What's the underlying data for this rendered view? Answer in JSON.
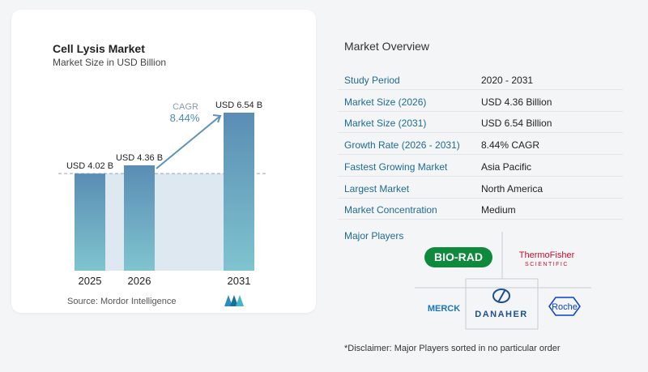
{
  "chart": {
    "title": "Cell Lysis Market",
    "subtitle": "Market Size in USD Billion",
    "source": "Source:  Mordor Intelligence",
    "cagr_label": "CAGR",
    "cagr_value": "8.44%"
  },
  "chart_data": {
    "type": "bar",
    "title": "Cell Lysis Market",
    "subtitle": "Market Size in USD Billion",
    "categories": [
      "2025",
      "2026",
      "2031"
    ],
    "values": [
      4.02,
      4.36,
      6.54
    ],
    "data_labels": [
      "USD 4.02 B",
      "USD 4.36 B",
      "USD 6.54 B"
    ],
    "ylim": [
      0,
      7
    ],
    "annotation": "CAGR 8.44%",
    "colors": {
      "bar_top": "#5b8fb5",
      "bar_bottom": "#7ec3cf",
      "shade": "#d9e6ef",
      "arrow": "#5b93b8"
    }
  },
  "overview": {
    "title": "Market Overview",
    "rows": [
      {
        "key": "Study Period",
        "value": "2020 - 2031"
      },
      {
        "key": "Market Size (2026)",
        "value": "USD 4.36 Billion"
      },
      {
        "key": "Market Size (2031)",
        "value": "USD 6.54 Billion"
      },
      {
        "key": "Growth Rate (2026 - 2031)",
        "value": "8.44% CAGR"
      },
      {
        "key": "Fastest Growing Market",
        "value": "Asia Pacific"
      },
      {
        "key": "Largest Market",
        "value": "North America"
      },
      {
        "key": "Market Concentration",
        "value": "Medium"
      }
    ]
  },
  "players": {
    "label": "Major Players",
    "logos": [
      "BIO-RAD",
      "Thermo Fisher SCIENTIFIC",
      "Merck",
      "DANAHER",
      "Roche"
    ],
    "disclaimer": "*Disclaimer: Major Players sorted in no particular order"
  }
}
